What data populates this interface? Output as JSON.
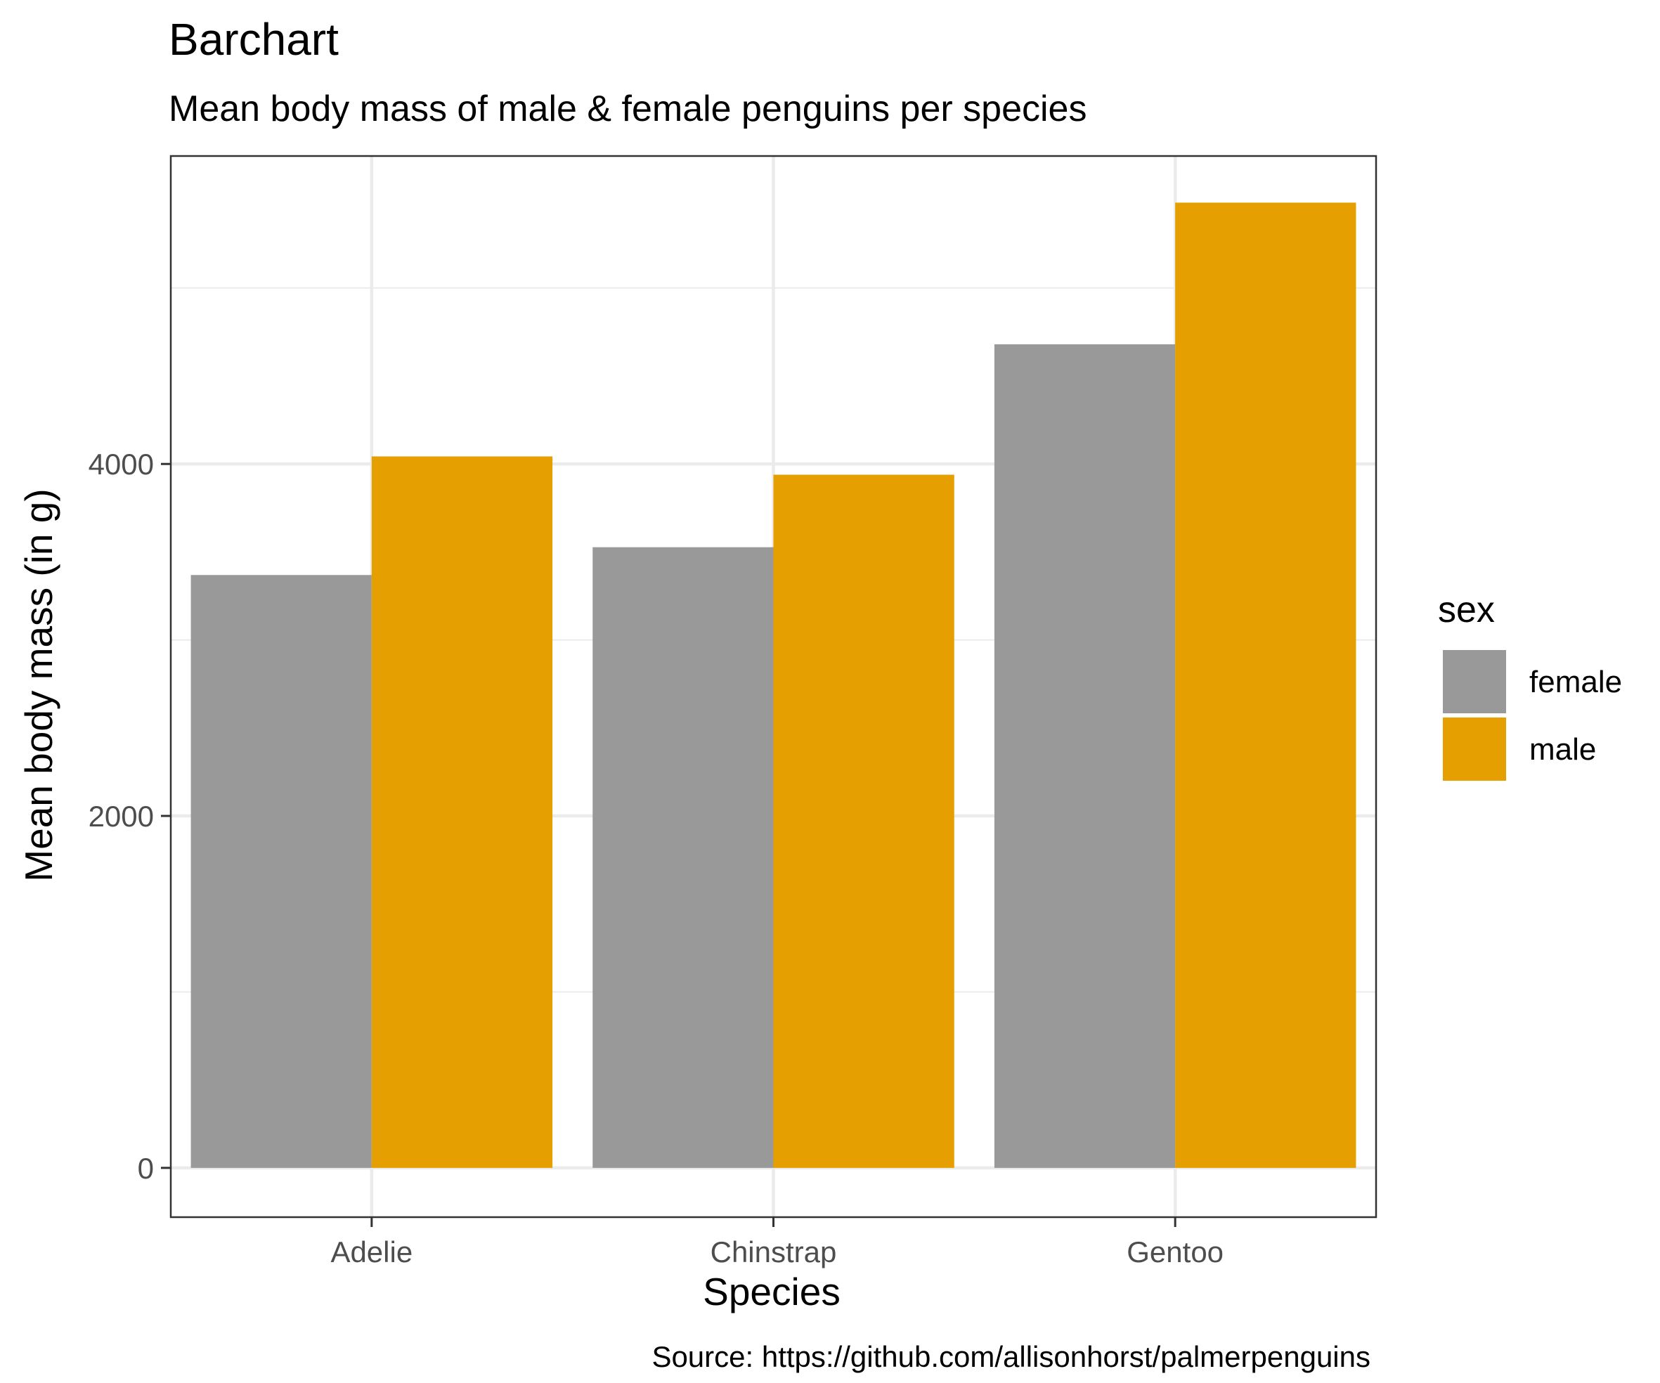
{
  "chart_data": {
    "type": "bar",
    "title": "Barchart",
    "subtitle": "Mean body mass of male & female penguins per species",
    "caption": "Source: https://github.com/allisonhorst/palmerpenguins",
    "xlabel": "Species",
    "ylabel": "Mean body mass (in g)",
    "categories": [
      "Adelie",
      "Chinstrap",
      "Gentoo"
    ],
    "series": [
      {
        "name": "female",
        "values": [
          3369,
          3527,
          4680
        ],
        "color": "#999999"
      },
      {
        "name": "male",
        "values": [
          4043,
          3939,
          5485
        ],
        "color": "#E69F00"
      }
    ],
    "ylim": [
      -280,
      5750
    ],
    "yticks": [
      0,
      2000,
      4000
    ],
    "yticks_minor": [
      1000,
      3000,
      5000
    ],
    "grid": true,
    "legend": {
      "title": "sex",
      "position": "right"
    }
  }
}
